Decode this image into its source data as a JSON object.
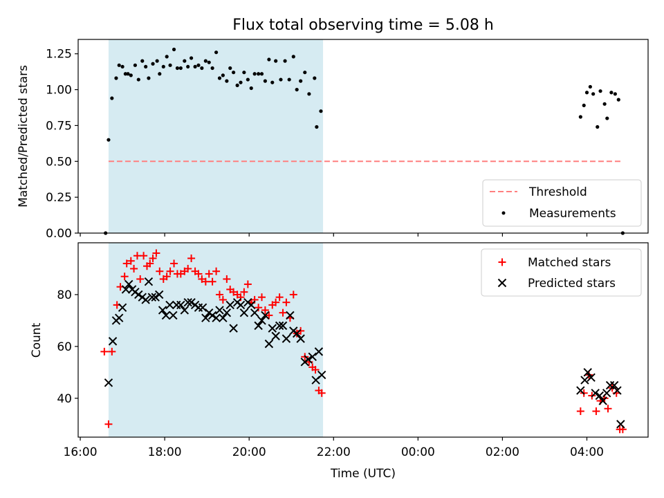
{
  "figure_title": "Flux total observing time = 5.08 h",
  "colors": {
    "threshold": "#ff7f7f",
    "measurement": "#000000",
    "matched": "#ff0000",
    "predicted": "#000000",
    "observing_window": "#add8e6"
  },
  "chart_data": [
    {
      "type": "scatter",
      "ylabel": "Matched/Predicted stars",
      "xlim": [
        15.95,
        29.45
      ],
      "ylim": [
        0.0,
        1.35
      ],
      "yticks": [
        0.0,
        0.25,
        0.5,
        0.75,
        1.0,
        1.25
      ],
      "ytick_labels": [
        "0.00",
        "0.25",
        "0.50",
        "0.75",
        "1.00",
        "1.25"
      ],
      "xticks": [
        16,
        18,
        20,
        22,
        24,
        26,
        28
      ],
      "shaded_interval": [
        16.67,
        21.75
      ],
      "legend": {
        "position": "lower right",
        "entries": [
          "Threshold",
          "Measurements"
        ]
      },
      "threshold": {
        "name": "Threshold",
        "value": 0.5,
        "x_range": [
          16.67,
          28.85
        ],
        "style": "dashed"
      },
      "series": [
        {
          "name": "Measurements",
          "marker": "dot",
          "points": [
            [
              16.6,
              0.0
            ],
            [
              16.67,
              0.65
            ],
            [
              16.75,
              0.94
            ],
            [
              16.85,
              1.08
            ],
            [
              16.92,
              1.17
            ],
            [
              17.0,
              1.16
            ],
            [
              17.07,
              1.11
            ],
            [
              17.13,
              1.11
            ],
            [
              17.2,
              1.1
            ],
            [
              17.3,
              1.17
            ],
            [
              17.38,
              1.07
            ],
            [
              17.47,
              1.2
            ],
            [
              17.55,
              1.16
            ],
            [
              17.62,
              1.08
            ],
            [
              17.72,
              1.18
            ],
            [
              17.82,
              1.2
            ],
            [
              17.88,
              1.11
            ],
            [
              17.97,
              1.16
            ],
            [
              18.05,
              1.23
            ],
            [
              18.13,
              1.17
            ],
            [
              18.22,
              1.28
            ],
            [
              18.3,
              1.15
            ],
            [
              18.38,
              1.15
            ],
            [
              18.47,
              1.2
            ],
            [
              18.55,
              1.16
            ],
            [
              18.63,
              1.22
            ],
            [
              18.72,
              1.16
            ],
            [
              18.8,
              1.17
            ],
            [
              18.88,
              1.15
            ],
            [
              18.97,
              1.2
            ],
            [
              19.05,
              1.19
            ],
            [
              19.13,
              1.15
            ],
            [
              19.22,
              1.26
            ],
            [
              19.3,
              1.08
            ],
            [
              19.38,
              1.1
            ],
            [
              19.47,
              1.06
            ],
            [
              19.55,
              1.15
            ],
            [
              19.63,
              1.12
            ],
            [
              19.72,
              1.03
            ],
            [
              19.8,
              1.05
            ],
            [
              19.88,
              1.12
            ],
            [
              19.97,
              1.07
            ],
            [
              20.05,
              1.01
            ],
            [
              20.13,
              1.11
            ],
            [
              20.22,
              1.11
            ],
            [
              20.3,
              1.11
            ],
            [
              20.38,
              1.06
            ],
            [
              20.47,
              1.21
            ],
            [
              20.55,
              1.05
            ],
            [
              20.63,
              1.2
            ],
            [
              20.75,
              1.07
            ],
            [
              20.85,
              1.2
            ],
            [
              20.95,
              1.07
            ],
            [
              21.05,
              1.23
            ],
            [
              21.13,
              1.0
            ],
            [
              21.22,
              1.06
            ],
            [
              21.32,
              1.12
            ],
            [
              21.42,
              0.97
            ],
            [
              21.55,
              1.08
            ],
            [
              21.6,
              0.74
            ],
            [
              21.7,
              0.85
            ],
            [
              27.85,
              0.81
            ],
            [
              27.93,
              0.89
            ],
            [
              28.0,
              0.98
            ],
            [
              28.08,
              1.02
            ],
            [
              28.15,
              0.97
            ],
            [
              28.25,
              0.74
            ],
            [
              28.32,
              0.99
            ],
            [
              28.42,
              0.9
            ],
            [
              28.48,
              0.8
            ],
            [
              28.58,
              0.98
            ],
            [
              28.67,
              0.97
            ],
            [
              28.75,
              0.93
            ],
            [
              28.85,
              0.0
            ]
          ]
        }
      ]
    },
    {
      "type": "scatter",
      "xlabel": "Time (UTC)",
      "ylabel": "Count",
      "xlim": [
        15.95,
        29.45
      ],
      "ylim": [
        25,
        100
      ],
      "yticks": [
        40,
        60,
        80
      ],
      "ytick_labels": [
        "40",
        "60",
        "80"
      ],
      "xticks": [
        16,
        18,
        20,
        22,
        24,
        26,
        28
      ],
      "xtick_labels": [
        "16:00",
        "18:00",
        "20:00",
        "22:00",
        "00:00",
        "02:00",
        "04:00"
      ],
      "shaded_interval": [
        16.67,
        21.75
      ],
      "legend": {
        "position": "upper right",
        "entries": [
          "Matched stars",
          "Predicted stars"
        ]
      },
      "series": [
        {
          "name": "Matched stars",
          "marker": "plus",
          "points": [
            [
              16.57,
              58
            ],
            [
              16.67,
              30
            ],
            [
              16.75,
              58
            ],
            [
              16.87,
              76
            ],
            [
              16.95,
              83
            ],
            [
              17.05,
              87
            ],
            [
              17.1,
              92
            ],
            [
              17.2,
              93
            ],
            [
              17.27,
              90
            ],
            [
              17.35,
              95
            ],
            [
              17.42,
              86
            ],
            [
              17.5,
              95
            ],
            [
              17.58,
              91
            ],
            [
              17.65,
              92
            ],
            [
              17.72,
              94
            ],
            [
              17.8,
              96
            ],
            [
              17.88,
              89
            ],
            [
              17.97,
              86
            ],
            [
              18.05,
              87
            ],
            [
              18.13,
              89
            ],
            [
              18.22,
              92
            ],
            [
              18.3,
              88
            ],
            [
              18.38,
              88
            ],
            [
              18.47,
              89
            ],
            [
              18.55,
              90
            ],
            [
              18.63,
              94
            ],
            [
              18.72,
              89
            ],
            [
              18.8,
              88
            ],
            [
              18.88,
              86
            ],
            [
              18.97,
              85
            ],
            [
              19.05,
              88
            ],
            [
              19.13,
              85
            ],
            [
              19.22,
              89
            ],
            [
              19.3,
              80
            ],
            [
              19.38,
              78
            ],
            [
              19.47,
              86
            ],
            [
              19.55,
              82
            ],
            [
              19.63,
              81
            ],
            [
              19.72,
              80
            ],
            [
              19.8,
              79
            ],
            [
              19.88,
              81
            ],
            [
              19.97,
              84
            ],
            [
              20.05,
              77
            ],
            [
              20.13,
              78
            ],
            [
              20.22,
              75
            ],
            [
              20.3,
              79
            ],
            [
              20.38,
              74
            ],
            [
              20.47,
              72
            ],
            [
              20.55,
              76
            ],
            [
              20.63,
              77
            ],
            [
              20.72,
              79
            ],
            [
              20.8,
              73
            ],
            [
              20.88,
              77
            ],
            [
              20.97,
              71
            ],
            [
              21.05,
              80
            ],
            [
              21.13,
              65
            ],
            [
              21.22,
              66
            ],
            [
              21.32,
              56
            ],
            [
              21.42,
              54
            ],
            [
              21.5,
              52
            ],
            [
              21.57,
              51
            ],
            [
              21.65,
              43
            ],
            [
              21.72,
              42
            ],
            [
              27.85,
              35
            ],
            [
              27.93,
              42
            ],
            [
              28.05,
              49
            ],
            [
              28.12,
              41
            ],
            [
              28.22,
              35
            ],
            [
              28.32,
              39
            ],
            [
              28.42,
              40
            ],
            [
              28.5,
              36
            ],
            [
              28.6,
              44
            ],
            [
              28.7,
              42
            ],
            [
              28.78,
              28
            ],
            [
              28.85,
              28
            ]
          ]
        },
        {
          "name": "Predicted stars",
          "marker": "x",
          "points": [
            [
              16.67,
              46
            ],
            [
              16.77,
              62
            ],
            [
              16.85,
              70
            ],
            [
              16.92,
              71
            ],
            [
              17.0,
              75
            ],
            [
              17.08,
              82
            ],
            [
              17.15,
              84
            ],
            [
              17.23,
              82
            ],
            [
              17.3,
              81
            ],
            [
              17.38,
              80
            ],
            [
              17.47,
              79
            ],
            [
              17.55,
              78
            ],
            [
              17.62,
              85
            ],
            [
              17.7,
              79
            ],
            [
              17.78,
              79
            ],
            [
              17.87,
              80
            ],
            [
              17.95,
              74
            ],
            [
              18.03,
              72
            ],
            [
              18.12,
              76
            ],
            [
              18.2,
              72
            ],
            [
              18.28,
              76
            ],
            [
              18.38,
              76
            ],
            [
              18.47,
              74
            ],
            [
              18.55,
              77
            ],
            [
              18.63,
              77
            ],
            [
              18.72,
              76
            ],
            [
              18.8,
              75
            ],
            [
              18.9,
              75
            ],
            [
              18.97,
              71
            ],
            [
              19.05,
              73
            ],
            [
              19.13,
              72
            ],
            [
              19.22,
              71
            ],
            [
              19.3,
              74
            ],
            [
              19.38,
              71
            ],
            [
              19.47,
              73
            ],
            [
              19.55,
              76
            ],
            [
              19.63,
              67
            ],
            [
              19.72,
              77
            ],
            [
              19.8,
              76
            ],
            [
              19.88,
              73
            ],
            [
              19.97,
              77
            ],
            [
              20.05,
              76
            ],
            [
              20.13,
              73
            ],
            [
              20.22,
              68
            ],
            [
              20.3,
              70
            ],
            [
              20.38,
              72
            ],
            [
              20.47,
              61
            ],
            [
              20.55,
              67
            ],
            [
              20.63,
              64
            ],
            [
              20.72,
              68
            ],
            [
              20.8,
              68
            ],
            [
              20.88,
              63
            ],
            [
              20.97,
              72
            ],
            [
              21.05,
              66
            ],
            [
              21.13,
              65
            ],
            [
              21.22,
              63
            ],
            [
              21.32,
              54
            ],
            [
              21.4,
              55
            ],
            [
              21.5,
              56
            ],
            [
              21.58,
              47
            ],
            [
              21.65,
              58
            ],
            [
              21.72,
              49
            ],
            [
              27.85,
              43
            ],
            [
              27.95,
              47
            ],
            [
              28.02,
              50
            ],
            [
              28.1,
              48
            ],
            [
              28.2,
              42
            ],
            [
              28.3,
              41
            ],
            [
              28.38,
              39
            ],
            [
              28.47,
              42
            ],
            [
              28.55,
              45
            ],
            [
              28.65,
              45
            ],
            [
              28.72,
              43
            ],
            [
              28.8,
              30
            ]
          ]
        }
      ]
    }
  ]
}
